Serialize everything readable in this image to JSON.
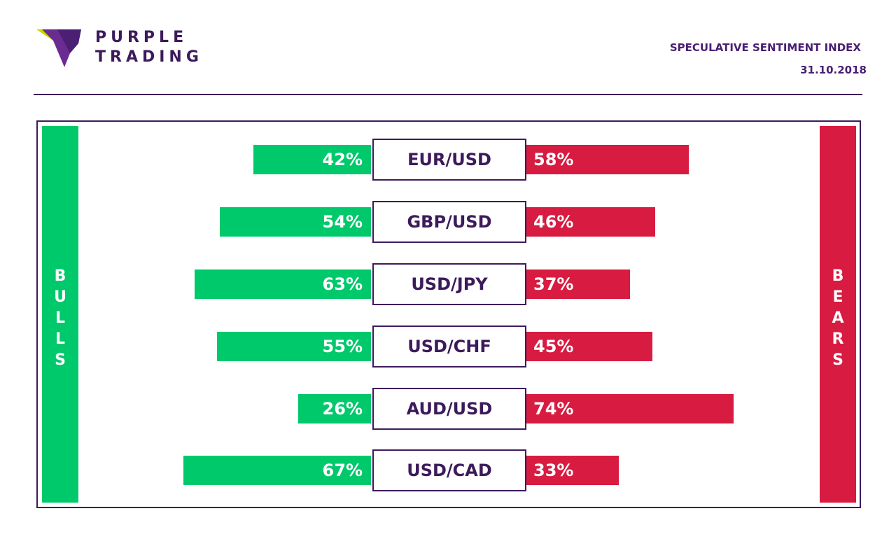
{
  "brand": {
    "line1": "PURPLE",
    "line2": "TRADING"
  },
  "header": {
    "title": "SPECULATIVE SENTIMENT INDEX",
    "date": "31.10.2018"
  },
  "colors": {
    "bulls": "#00c96b",
    "bears": "#d81b40",
    "brand": "#3c1a5b"
  },
  "sides": {
    "bulls": "BULLS",
    "bears": "BEARS"
  },
  "chart_data": {
    "type": "bar",
    "categories": [
      "EUR/USD",
      "GBP/USD",
      "USD/JPY",
      "USD/CHF",
      "AUD/USD",
      "USD/CAD"
    ],
    "series": [
      {
        "name": "BULLS",
        "values": [
          42,
          54,
          63,
          55,
          26,
          67
        ],
        "labels": [
          "42%",
          "54%",
          "63%",
          "55%",
          "26%",
          "67%"
        ]
      },
      {
        "name": "BEARS",
        "values": [
          58,
          46,
          37,
          45,
          74,
          33
        ],
        "labels": [
          "58%",
          "46%",
          "37%",
          "45%",
          "74%",
          "33%"
        ]
      }
    ]
  }
}
